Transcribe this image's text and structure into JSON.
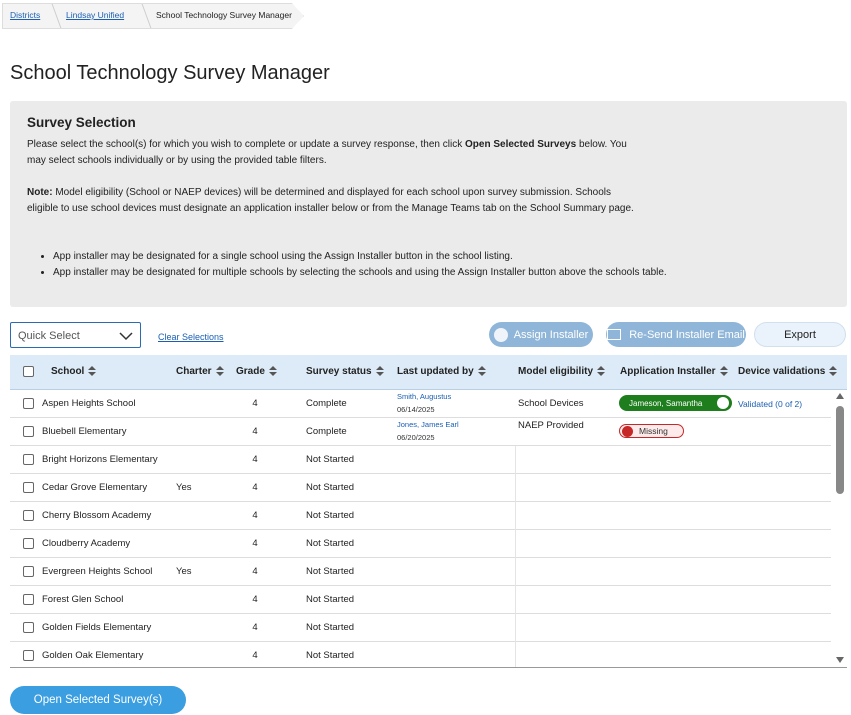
{
  "breadcrumb": [
    "Districts",
    "Lindsay Unified",
    "School Technology Survey Manager"
  ],
  "title": "School Technology Survey Manager",
  "selection": {
    "heading": "Survey Selection",
    "intro_before": "Please select the school(s) for which you wish to complete or update a survey response, then click ",
    "intro_bold": "Open Selected Surveys",
    "intro_after": " below. You may select schools individually or by using the provided table filters.",
    "note_label": "Note:",
    "note_text": " Model eligibility (School or NAEP devices) will be determined and displayed for each school upon survey submission. Schools eligible to use school devices must designate an application installer below or from the Manage Teams tab on the School Summary page.",
    "bullets": [
      "App installer may be designated for a single school using the Assign Installer button in the school listing.",
      "App installer may be designated for multiple schools by selecting the schools and using the Assign Installer button above the schools table."
    ]
  },
  "toolbar": {
    "quick_select": "Quick Select",
    "clear": "Clear Selections",
    "assign": "Assign Installer",
    "resend": "Re-Send Installer Email",
    "export": "Export"
  },
  "table": {
    "columns": [
      "School",
      "Charter",
      "Grade",
      "Survey status",
      "Last updated by",
      "Model eligibility",
      "Application Installer",
      "Device validations"
    ],
    "rows": [
      {
        "school": "Aspen Heights School",
        "grade": 4,
        "status": "Complete",
        "updated_by": "Smith, Augustus",
        "updated_on": "06/14/2025",
        "eligibility": "School Devices",
        "installer": "Jameson, Samantha",
        "validation": "Validated (0 of 2)"
      },
      {
        "school": "Bluebell Elementary",
        "grade": 4,
        "status": "Complete",
        "updated_by": "Jones, James Earl",
        "updated_on": "06/20/2025",
        "eligibility": "NAEP Provided",
        "missing": "Missing"
      },
      {
        "school": "Bright Horizons Elementary",
        "grade": 4,
        "status": "Not Started"
      },
      {
        "school": "Cedar Grove Elementary",
        "charter": "Yes",
        "grade": 4,
        "status": "Not Started"
      },
      {
        "school": "Cherry Blossom Academy",
        "grade": 4,
        "status": "Not Started"
      },
      {
        "school": "Cloudberry Academy",
        "grade": 4,
        "status": "Not Started"
      },
      {
        "school": "Evergreen Heights School",
        "charter": "Yes",
        "grade": 4,
        "status": "Not Started"
      },
      {
        "school": "Forest Glen School",
        "grade": 4,
        "status": "Not Started"
      },
      {
        "school": "Golden Fields Elementary",
        "grade": 4,
        "status": "Not Started"
      },
      {
        "school": "Golden Oak Elementary",
        "grade": 4,
        "status": "Not Started"
      }
    ]
  },
  "open_button": "Open Selected Survey(s)"
}
